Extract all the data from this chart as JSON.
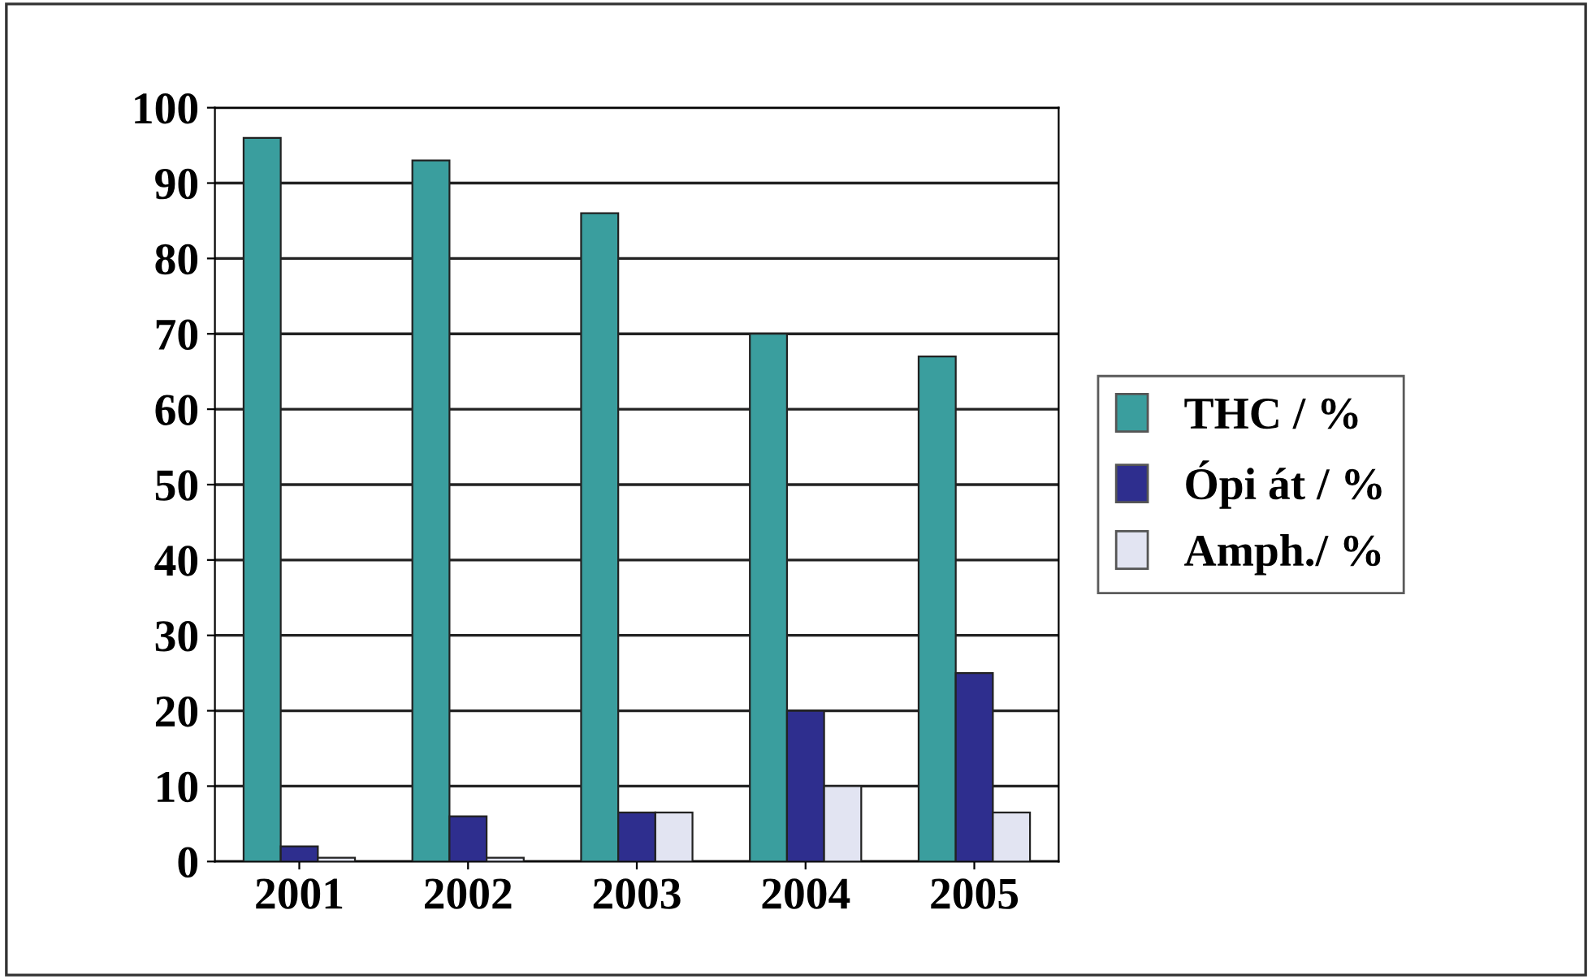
{
  "chart_data": {
    "type": "bar",
    "categories": [
      "2001",
      "2002",
      "2003",
      "2004",
      "2005"
    ],
    "series": [
      {
        "name": "THC / %",
        "color": "#3a9e9e",
        "values": [
          96,
          93,
          86,
          70,
          67
        ]
      },
      {
        "name": "Ópi át / %",
        "color": "#2e2e8e",
        "values": [
          2,
          6,
          6.5,
          20,
          25
        ]
      },
      {
        "name": "Amph./ %",
        "color": "#e2e4f2",
        "values": [
          0.5,
          0.5,
          6.5,
          10,
          6.5
        ]
      }
    ],
    "ylim": [
      0,
      100
    ],
    "yticks": [
      0,
      10,
      20,
      30,
      40,
      50,
      60,
      70,
      80,
      90,
      100
    ],
    "grid": "y",
    "legend": "right"
  }
}
